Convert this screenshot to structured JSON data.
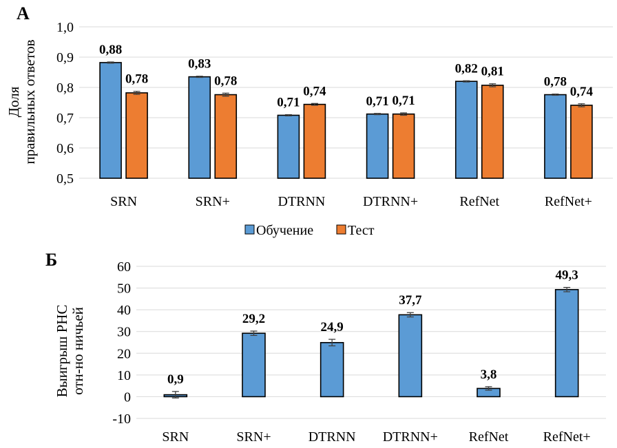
{
  "colors": {
    "train": "#5B9BD5",
    "test": "#ED7D31",
    "grid": "#D9D9D9",
    "bar_outline": "#000000"
  },
  "chart_data": [
    {
      "type": "bar",
      "panel_label": "А",
      "ylabel_lines": [
        "Доля",
        "правильных ответов"
      ],
      "categories": [
        "SRN",
        "SRN+",
        "DTRNN",
        "DTRNN+",
        "RefNet",
        "RefNet+"
      ],
      "ylim": [
        0.5,
        1.0
      ],
      "yticks": [
        "0,5",
        "0,6",
        "0,7",
        "0,8",
        "0,9",
        "1,0"
      ],
      "grid": true,
      "legend_position": "bottom",
      "series": [
        {
          "name": "Обучение",
          "values": [
            0.882,
            0.835,
            0.708,
            0.712,
            0.82,
            0.776
          ],
          "errors": [
            0.002,
            0.002,
            0.002,
            0.002,
            0.002,
            0.002
          ],
          "labels": [
            "0,88",
            "0,83",
            "0,71",
            "0,71",
            "0,82",
            "0,78"
          ]
        },
        {
          "name": "Тест",
          "values": [
            0.782,
            0.776,
            0.744,
            0.712,
            0.807,
            0.741
          ],
          "errors": [
            0.005,
            0.005,
            0.003,
            0.004,
            0.005,
            0.005
          ],
          "labels": [
            "0,78",
            "0,78",
            "0,74",
            "0,71",
            "0,81",
            "0,74"
          ]
        }
      ]
    },
    {
      "type": "bar",
      "panel_label": "Б",
      "ylabel_lines": [
        "Выигрыш РНС",
        "отн-но ничьей"
      ],
      "categories": [
        "SRN",
        "SRN+",
        "DTRNN",
        "DTRNN+",
        "RefNet",
        "RefNet+"
      ],
      "ylim": [
        -10,
        60
      ],
      "yticks": [
        "-10",
        "0",
        "10",
        "20",
        "30",
        "40",
        "50",
        "60"
      ],
      "grid": true,
      "series": [
        {
          "name": "Обучение",
          "values": [
            0.9,
            29.2,
            24.9,
            37.7,
            3.8,
            49.3
          ],
          "errors": [
            1.5,
            1.0,
            1.5,
            1.0,
            0.8,
            1.0
          ],
          "labels": [
            "0,9",
            "29,2",
            "24,9",
            "37,7",
            "3,8",
            "49,3"
          ]
        }
      ]
    }
  ]
}
